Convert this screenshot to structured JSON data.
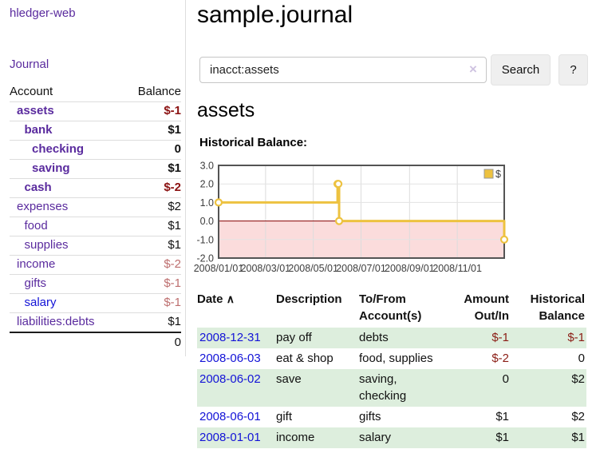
{
  "colors": {
    "link_purple": "#5a2b9e",
    "link_blue": "#1313d7",
    "negative_strong": "#8b1212",
    "negative_soft": "#bd6e6e",
    "row_stripe_green": "#ddeedd",
    "chart_line_gold": "#edc240",
    "chart_negative_fill": "#fbdcdc",
    "chart_zero_line": "#8b0000"
  },
  "app": {
    "title": "hledger-web"
  },
  "sidebar": {
    "journal_link": "Journal",
    "accounts": {
      "header": {
        "account": "Account",
        "balance": "Balance"
      },
      "rows": [
        {
          "account": "assets",
          "balance": "$-1",
          "indent": 1,
          "bold": true,
          "balance_class": "neg-strong"
        },
        {
          "account": "bank",
          "balance": "$1",
          "indent": 2,
          "bold": true,
          "balance_class": ""
        },
        {
          "account": "checking",
          "balance": "0",
          "indent": 3,
          "bold": true,
          "balance_class": ""
        },
        {
          "account": "saving",
          "balance": "$1",
          "indent": 3,
          "bold": true,
          "balance_class": ""
        },
        {
          "account": "cash",
          "balance": "$-2",
          "indent": 2,
          "bold": true,
          "balance_class": "neg-strong"
        },
        {
          "account": "expenses",
          "balance": "$2",
          "indent": 1,
          "bold": false,
          "balance_class": ""
        },
        {
          "account": "food",
          "balance": "$1",
          "indent": 2,
          "bold": false,
          "balance_class": ""
        },
        {
          "account": "supplies",
          "balance": "$1",
          "indent": 2,
          "bold": false,
          "balance_class": ""
        },
        {
          "account": "income",
          "balance": "$-2",
          "indent": 1,
          "bold": false,
          "balance_class": "neg-soft"
        },
        {
          "account": "gifts",
          "balance": "$-1",
          "indent": 2,
          "bold": false,
          "balance_class": "neg-soft"
        },
        {
          "account": "salary",
          "balance": "$-1",
          "indent": 2,
          "bold": false,
          "balance_class": "neg-soft",
          "link_blue": true
        },
        {
          "account": "liabilities:debts",
          "balance": "$1",
          "indent": 1,
          "bold": false,
          "balance_class": ""
        }
      ],
      "total": "0"
    }
  },
  "main": {
    "title": "sample.journal",
    "search": {
      "value": "inacct:assets",
      "clear_icon": "×",
      "search_button": "Search",
      "help_button": "?"
    },
    "account_heading": "assets",
    "chart_title": "Historical Balance:"
  },
  "chart_data": {
    "type": "line",
    "step": true,
    "title": "Historical Balance:",
    "series": [
      {
        "name": "$",
        "color": "#edc240",
        "x": [
          "2008-01-01",
          "2008-06-01",
          "2008-06-02",
          "2008-06-03",
          "2008-12-31"
        ],
        "values": [
          1,
          2,
          2,
          0,
          -1
        ]
      }
    ],
    "x_range": [
      "2008-01-01",
      "2008-12-31"
    ],
    "ylim": [
      -2,
      3
    ],
    "y_ticks": [
      3,
      2,
      1,
      0,
      -1,
      -2
    ],
    "y_tick_labels": [
      "3.0",
      "2.0",
      "1.0",
      "0.0",
      "-1.0",
      "-2.0"
    ],
    "x_ticks": [
      "2008-01-01",
      "2008-03-01",
      "2008-05-01",
      "2008-07-01",
      "2008-09-01",
      "2008-11-01"
    ],
    "x_tick_labels": [
      "2008/01/01",
      "2008/03/01",
      "2008/05/01",
      "2008/07/01",
      "2008/09/01",
      "2008/11/01"
    ],
    "grid": true,
    "legend_position": "top-right",
    "negative_region_color": "#fbdcdc",
    "zero_line_color": "#8b0000",
    "border_color": "#545454"
  },
  "register": {
    "headers": {
      "date": "Date",
      "sort_icon": "∧",
      "description": "Description",
      "accounts": "To/From Account(s)",
      "amount": "Amount Out/In",
      "balance": "Historical Balance"
    },
    "rows": [
      {
        "date": "2008-12-31",
        "description": "pay off",
        "accounts": "debts",
        "amount": "$-1",
        "balance": "$-1",
        "amount_class": "neg",
        "balance_class": "neg",
        "shade": true
      },
      {
        "date": "2008-06-03",
        "description": "eat & shop",
        "accounts": "food, supplies",
        "amount": "$-2",
        "balance": "0",
        "amount_class": "neg",
        "balance_class": "",
        "shade": false
      },
      {
        "date": "2008-06-02",
        "description": "save",
        "accounts": "saving, checking",
        "amount": "0",
        "balance": "$2",
        "amount_class": "",
        "balance_class": "",
        "shade": true
      },
      {
        "date": "2008-06-01",
        "description": "gift",
        "accounts": "gifts",
        "amount": "$1",
        "balance": "$2",
        "amount_class": "",
        "balance_class": "",
        "shade": false
      },
      {
        "date": "2008-01-01",
        "description": "income",
        "accounts": "salary",
        "amount": "$1",
        "balance": "$1",
        "amount_class": "",
        "balance_class": "",
        "shade": true
      }
    ]
  }
}
